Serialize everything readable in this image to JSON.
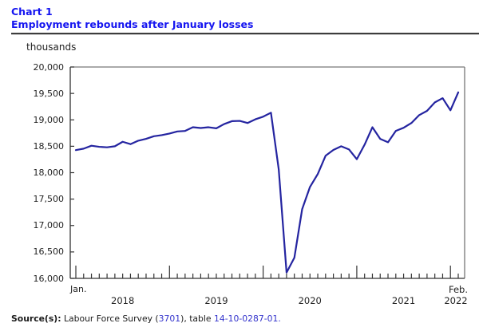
{
  "header": {
    "chart_label": "Chart 1",
    "title": "Employment rebounds after January losses"
  },
  "axes": {
    "unit_label": "thousands",
    "y_tick_labels": [
      "20,000",
      "19,500",
      "19,000",
      "18,500",
      "18,000",
      "17,500",
      "17,000",
      "16,500",
      "16,000"
    ],
    "x_first_tick_label": "Jan.",
    "x_last_tick_label": "Feb.",
    "x_year_labels": [
      "2018",
      "2019",
      "2020",
      "2021",
      "2022"
    ]
  },
  "source": {
    "prefix": "Source(s):",
    "text1": " Labour Force Survey (",
    "link1": "3701",
    "text2": "), table ",
    "link2": "14-10-0287-01",
    "suffix": "."
  },
  "colors": {
    "title_blue": "#1515f0",
    "line_blue": "#2424a0",
    "link_blue": "#3333cc",
    "frame_gray": "#777777",
    "axis_dark": "#222222"
  },
  "chart_data": {
    "type": "line",
    "title": "Employment rebounds after January losses",
    "ylabel": "thousands",
    "ylim": [
      16000,
      20000
    ],
    "y_tick_step": 500,
    "x_range": "January 2018 to February 2022, monthly",
    "x_tick_style": "minor tick each month, tall tick each January and labels Jan. 2018 / Feb. 2022",
    "legend": "none",
    "grid": "off",
    "series": [
      {
        "name": "Employment (thousands)",
        "values": [
          18427,
          18455,
          18510,
          18490,
          18480,
          18500,
          18585,
          18540,
          18605,
          18640,
          18690,
          18710,
          18740,
          18780,
          18790,
          18860,
          18845,
          18860,
          18840,
          18920,
          18975,
          18980,
          18940,
          19010,
          19060,
          19135,
          18060,
          16110,
          16390,
          17310,
          17730,
          17975,
          18320,
          18430,
          18500,
          18440,
          18255,
          18530,
          18860,
          18640,
          18575,
          18790,
          18850,
          18940,
          19090,
          19170,
          19330,
          19410,
          19180,
          19520
        ]
      }
    ]
  }
}
